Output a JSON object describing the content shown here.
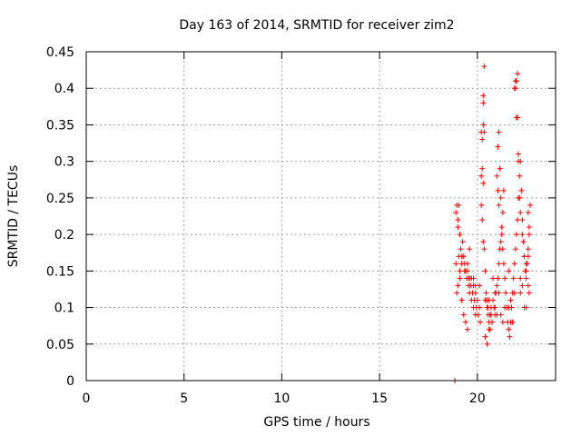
{
  "chart_data": {
    "type": "scatter",
    "title": "Day 163 of 2014, SRMTID for receiver zim2",
    "xlabel": "GPS time / hours",
    "ylabel": "SRMTID / TECUs",
    "xlim": [
      0,
      24
    ],
    "ylim": [
      0,
      0.45
    ],
    "xticks": [
      0,
      5,
      10,
      15,
      20
    ],
    "yticks": [
      0,
      0.05,
      0.1,
      0.15,
      0.2,
      0.25,
      0.3,
      0.35,
      0.4,
      0.45
    ],
    "x_tick_labels": [
      "0",
      "5",
      "10",
      "15",
      "20"
    ],
    "y_tick_labels": [
      "0",
      "0.05",
      "0.1",
      "0.15",
      "0.2",
      "0.25",
      "0.3",
      "0.35",
      "0.4",
      "0.45"
    ],
    "grid": true,
    "marker_color": "#ff0000",
    "series": [
      {
        "name": "SRMTID",
        "marker": "+",
        "x": [
          18.85,
          18.9,
          18.95,
          19.0,
          19.05,
          19.1,
          19.15,
          18.95,
          19.0,
          19.1,
          19.2,
          19.3,
          19.4,
          19.5,
          19.2,
          19.3,
          19.35,
          19.45,
          19.55,
          19.6,
          19.7,
          19.8,
          19.9,
          19.25,
          19.35,
          19.5,
          19.6,
          19.7,
          19.8,
          19.9,
          20.0,
          20.1,
          19.4,
          19.55,
          19.65,
          19.75,
          19.85,
          19.95,
          20.05,
          20.15,
          20.2,
          20.25,
          20.3,
          20.35,
          20.2,
          20.25,
          20.3,
          20.35,
          20.4,
          20.45,
          20.5,
          20.55,
          20.6,
          20.65,
          20.4,
          20.5,
          20.6,
          20.7,
          20.8,
          20.9,
          21.0,
          20.5,
          20.55,
          20.65,
          20.75,
          20.85,
          20.95,
          21.05,
          21.1,
          21.15,
          21.2,
          21.25,
          21.3,
          21.35,
          21.0,
          21.05,
          21.1,
          21.15,
          21.2,
          21.25,
          21.3,
          21.35,
          21.4,
          21.45,
          21.5,
          21.55,
          21.6,
          21.65,
          21.7,
          21.75,
          21.8,
          21.85,
          21.9,
          21.95,
          22.0,
          22.05,
          22.1,
          22.15,
          22.2,
          22.25,
          22.3,
          22.35,
          22.4,
          22.45,
          22.5,
          22.55,
          22.6,
          22.65,
          21.9,
          21.95,
          22.0,
          22.05,
          22.1,
          22.15,
          22.2,
          22.3,
          22.4,
          22.5,
          22.6,
          22.65,
          22.7,
          20.3,
          20.35,
          20.25,
          20.3,
          21.05,
          21.1,
          21.95,
          22.0,
          22.05,
          22.0,
          22.1,
          22.6,
          22.65,
          22.6,
          19.05,
          19.0,
          19.1,
          18.9,
          20.2,
          20.3,
          20.8,
          20.9,
          21.1,
          21.2,
          21.6,
          21.7,
          22.3,
          22.4,
          19.6,
          19.9,
          20.6,
          20.9,
          21.4,
          21.8,
          22.2,
          22.5,
          19.2,
          19.5,
          19.8,
          20.1,
          20.4,
          20.7,
          21.0,
          21.3,
          21.6,
          21.9,
          22.2,
          22.5
        ],
        "y": [
          0.0,
          0.16,
          0.24,
          0.21,
          0.17,
          0.14,
          0.18,
          0.12,
          0.13,
          0.15,
          0.11,
          0.09,
          0.08,
          0.07,
          0.16,
          0.17,
          0.15,
          0.14,
          0.13,
          0.12,
          0.11,
          0.1,
          0.09,
          0.19,
          0.16,
          0.15,
          0.18,
          0.14,
          0.13,
          0.12,
          0.11,
          0.1,
          0.15,
          0.14,
          0.13,
          0.12,
          0.11,
          0.1,
          0.09,
          0.08,
          0.28,
          0.33,
          0.39,
          0.43,
          0.24,
          0.22,
          0.19,
          0.18,
          0.15,
          0.12,
          0.1,
          0.09,
          0.08,
          0.07,
          0.06,
          0.05,
          0.07,
          0.09,
          0.11,
          0.12,
          0.13,
          0.11,
          0.1,
          0.09,
          0.08,
          0.1,
          0.12,
          0.14,
          0.16,
          0.18,
          0.19,
          0.2,
          0.23,
          0.26,
          0.28,
          0.32,
          0.34,
          0.29,
          0.25,
          0.21,
          0.18,
          0.16,
          0.14,
          0.12,
          0.1,
          0.08,
          0.07,
          0.06,
          0.08,
          0.1,
          0.12,
          0.14,
          0.16,
          0.18,
          0.2,
          0.22,
          0.25,
          0.28,
          0.3,
          0.26,
          0.22,
          0.19,
          0.17,
          0.15,
          0.14,
          0.16,
          0.18,
          0.2,
          0.4,
          0.41,
          0.41,
          0.36,
          0.31,
          0.25,
          0.23,
          0.2,
          0.17,
          0.15,
          0.13,
          0.12,
          0.24,
          0.35,
          0.34,
          0.29,
          0.27,
          0.26,
          0.24,
          0.4,
          0.41,
          0.42,
          0.36,
          0.3,
          0.23,
          0.21,
          0.17,
          0.24,
          0.22,
          0.2,
          0.23,
          0.34,
          0.38,
          0.14,
          0.1,
          0.12,
          0.09,
          0.15,
          0.11,
          0.13,
          0.1,
          0.14,
          0.13,
          0.11,
          0.09,
          0.1,
          0.08,
          0.12,
          0.1,
          0.17,
          0.16,
          0.14,
          0.13,
          0.11,
          0.1,
          0.09,
          0.08,
          0.1,
          0.12,
          0.14,
          0.16
        ]
      }
    ]
  }
}
